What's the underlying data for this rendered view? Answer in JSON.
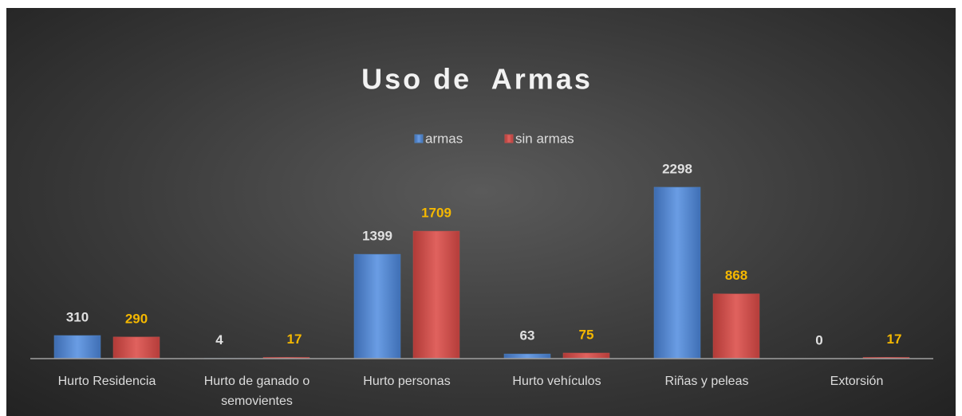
{
  "chart_data": {
    "type": "bar",
    "title": "Uso de  Armas",
    "categories": [
      "Hurto Residencia",
      "Hurto de ganado o semovientes",
      "Hurto personas",
      "Hurto vehículos",
      "Riñas y peleas",
      "Extorsión"
    ],
    "series": [
      {
        "name": "armas",
        "color": "#4f81bd",
        "values": [
          310,
          4,
          1399,
          63,
          2298,
          0
        ]
      },
      {
        "name": "sin armas",
        "color": "#c0504d",
        "values": [
          290,
          17,
          1709,
          75,
          868,
          17
        ]
      }
    ],
    "ylim": [
      0,
      2500
    ],
    "legend": "top"
  }
}
